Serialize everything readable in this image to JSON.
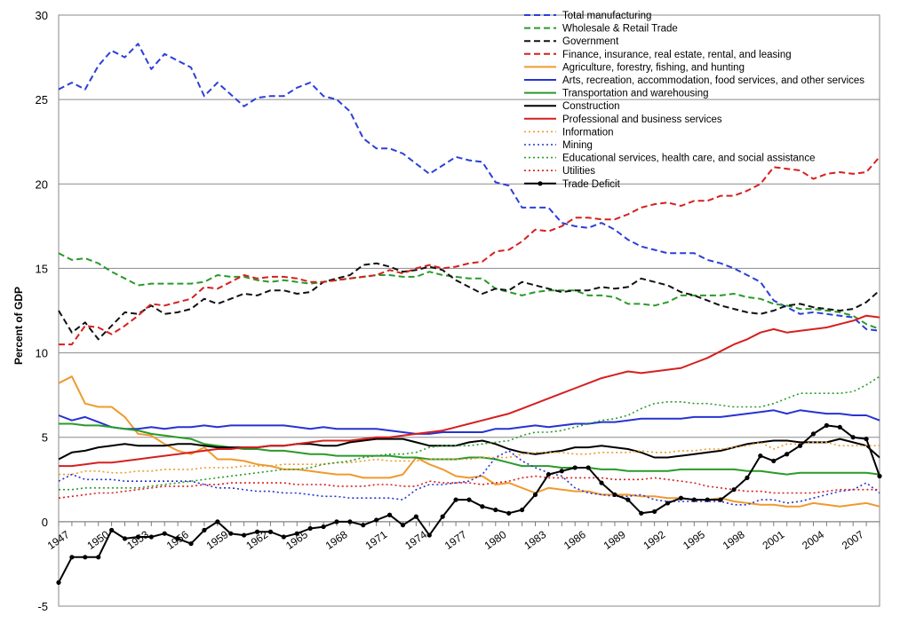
{
  "chart_data": {
    "type": "line",
    "title": "",
    "xlabel": "",
    "ylabel": "Percent of GDP",
    "ylim": [
      -5,
      30
    ],
    "yticks": [
      -5,
      0,
      5,
      10,
      15,
      20,
      25,
      30
    ],
    "xlim": [
      1947,
      2009
    ],
    "xticks": [
      1947,
      1950,
      1953,
      1956,
      1959,
      1962,
      1965,
      1968,
      1971,
      1974,
      1977,
      1980,
      1983,
      1986,
      1989,
      1992,
      1995,
      1998,
      2001,
      2004,
      2007
    ],
    "grid": "horizontal",
    "legend_position": "top-right",
    "x": [
      1947,
      1948,
      1949,
      1950,
      1951,
      1952,
      1953,
      1954,
      1955,
      1956,
      1957,
      1958,
      1959,
      1960,
      1961,
      1962,
      1963,
      1964,
      1965,
      1966,
      1967,
      1968,
      1969,
      1970,
      1971,
      1972,
      1973,
      1974,
      1975,
      1976,
      1977,
      1978,
      1979,
      1980,
      1981,
      1982,
      1983,
      1984,
      1985,
      1986,
      1987,
      1988,
      1989,
      1990,
      1991,
      1992,
      1993,
      1994,
      1995,
      1996,
      1997,
      1998,
      1999,
      2000,
      2001,
      2002,
      2003,
      2004,
      2005,
      2006,
      2007,
      2008,
      2009
    ],
    "series": [
      {
        "name": "Total  manufacturing",
        "color": "#2b3fd9",
        "dash": "dashed",
        "marker": false,
        "values": [
          25.6,
          26.0,
          25.6,
          27.0,
          27.9,
          27.5,
          28.3,
          26.8,
          27.7,
          27.3,
          26.9,
          25.2,
          26.0,
          25.3,
          24.6,
          25.1,
          25.2,
          25.2,
          25.7,
          26.0,
          25.2,
          25.0,
          24.3,
          22.7,
          22.1,
          22.1,
          21.8,
          21.2,
          20.6,
          21.1,
          21.6,
          21.4,
          21.3,
          20.1,
          19.9,
          18.6,
          18.6,
          18.6,
          17.7,
          17.5,
          17.4,
          17.7,
          17.3,
          16.7,
          16.3,
          16.1,
          15.9,
          15.9,
          15.9,
          15.5,
          15.3,
          15.0,
          14.6,
          14.2,
          13.1,
          12.7,
          12.3,
          12.4,
          12.3,
          12.2,
          12.1,
          11.4,
          11.3
        ]
      },
      {
        "name": "Wholesale & Retail Trade",
        "color": "#2a9a2a",
        "dash": "dashed",
        "marker": false,
        "values": [
          15.9,
          15.5,
          15.6,
          15.3,
          14.8,
          14.4,
          14.0,
          14.1,
          14.1,
          14.1,
          14.1,
          14.2,
          14.6,
          14.5,
          14.5,
          14.3,
          14.2,
          14.3,
          14.2,
          14.1,
          14.2,
          14.3,
          14.4,
          14.5,
          14.6,
          14.6,
          14.5,
          14.5,
          14.8,
          14.6,
          14.5,
          14.4,
          14.4,
          13.8,
          13.6,
          13.4,
          13.6,
          13.7,
          13.7,
          13.7,
          13.4,
          13.4,
          13.3,
          12.9,
          12.9,
          12.8,
          13.0,
          13.4,
          13.4,
          13.4,
          13.4,
          13.5,
          13.3,
          13.2,
          12.9,
          12.8,
          12.6,
          12.6,
          12.5,
          12.4,
          12.2,
          11.7,
          11.4
        ]
      },
      {
        "name": "Government",
        "color": "#111111",
        "dash": "dashed",
        "marker": false,
        "values": [
          12.5,
          11.2,
          11.8,
          10.8,
          11.6,
          12.4,
          12.3,
          12.8,
          12.3,
          12.4,
          12.6,
          13.2,
          12.9,
          13.2,
          13.5,
          13.4,
          13.7,
          13.7,
          13.5,
          13.6,
          14.2,
          14.4,
          14.6,
          15.2,
          15.3,
          15.1,
          14.8,
          14.9,
          15.1,
          14.9,
          14.3,
          13.9,
          13.5,
          13.8,
          13.7,
          14.2,
          14.0,
          13.8,
          13.6,
          13.7,
          13.7,
          13.9,
          13.8,
          13.9,
          14.4,
          14.2,
          14.0,
          13.6,
          13.4,
          13.1,
          12.8,
          12.6,
          12.4,
          12.3,
          12.5,
          12.8,
          12.9,
          12.7,
          12.6,
          12.5,
          12.6,
          13.0,
          13.7
        ]
      },
      {
        "name": "Finance,  insurance,  real estate,  rental,  and  leasing",
        "color": "#d61f1f",
        "dash": "dashed",
        "marker": false,
        "values": [
          10.5,
          10.5,
          11.6,
          11.5,
          11.1,
          11.6,
          12.2,
          12.9,
          12.8,
          13.0,
          13.2,
          13.9,
          13.8,
          14.2,
          14.6,
          14.4,
          14.5,
          14.5,
          14.4,
          14.2,
          14.2,
          14.3,
          14.4,
          14.5,
          14.6,
          14.9,
          14.7,
          15.0,
          15.2,
          15.0,
          15.1,
          15.3,
          15.4,
          16.0,
          16.1,
          16.6,
          17.3,
          17.2,
          17.5,
          18.0,
          18.0,
          17.9,
          17.9,
          18.2,
          18.6,
          18.8,
          18.9,
          18.7,
          19.0,
          19.0,
          19.3,
          19.3,
          19.6,
          20.0,
          21.0,
          20.9,
          20.8,
          20.3,
          20.6,
          20.7,
          20.6,
          20.7,
          21.6
        ]
      },
      {
        "name": "Agriculture,  forestry,  fishing,  and  hunting",
        "color": "#ef9a2e",
        "dash": "solid",
        "marker": false,
        "values": [
          8.2,
          8.6,
          7.0,
          6.8,
          6.8,
          6.2,
          5.2,
          5.1,
          4.6,
          4.2,
          4.0,
          4.4,
          3.7,
          3.7,
          3.6,
          3.4,
          3.3,
          3.1,
          3.1,
          3.0,
          2.9,
          2.8,
          2.8,
          2.6,
          2.6,
          2.6,
          2.8,
          3.8,
          3.4,
          3.1,
          2.7,
          2.6,
          2.7,
          2.2,
          2.3,
          2.0,
          1.7,
          2.0,
          1.9,
          1.8,
          1.8,
          1.6,
          1.6,
          1.6,
          1.5,
          1.5,
          1.4,
          1.4,
          1.3,
          1.3,
          1.4,
          1.2,
          1.1,
          1.0,
          1.0,
          0.9,
          0.9,
          1.1,
          1.0,
          0.9,
          1.0,
          1.1,
          0.9
        ]
      },
      {
        "name": "Arts,  recreation,  accommodation,  food services,  and  other  services",
        "color": "#2633d1",
        "dash": "solid",
        "marker": false,
        "values": [
          6.3,
          6.0,
          6.2,
          5.9,
          5.6,
          5.5,
          5.5,
          5.6,
          5.5,
          5.6,
          5.6,
          5.7,
          5.6,
          5.7,
          5.7,
          5.7,
          5.7,
          5.7,
          5.6,
          5.5,
          5.6,
          5.5,
          5.5,
          5.5,
          5.5,
          5.4,
          5.3,
          5.2,
          5.2,
          5.3,
          5.3,
          5.3,
          5.3,
          5.5,
          5.5,
          5.6,
          5.7,
          5.6,
          5.7,
          5.8,
          5.8,
          5.9,
          5.9,
          6.0,
          6.1,
          6.1,
          6.1,
          6.1,
          6.2,
          6.2,
          6.2,
          6.3,
          6.4,
          6.5,
          6.6,
          6.4,
          6.6,
          6.5,
          6.4,
          6.4,
          6.3,
          6.3,
          6.0
        ]
      },
      {
        "name": "Transportation  and  warehousing",
        "color": "#2a9a2a",
        "dash": "solid",
        "marker": false,
        "values": [
          5.8,
          5.8,
          5.7,
          5.7,
          5.6,
          5.5,
          5.4,
          5.2,
          5.1,
          5.0,
          4.9,
          4.6,
          4.5,
          4.4,
          4.3,
          4.3,
          4.2,
          4.2,
          4.1,
          4.0,
          4.0,
          3.9,
          3.9,
          3.9,
          3.9,
          3.9,
          3.8,
          3.8,
          3.7,
          3.7,
          3.7,
          3.8,
          3.8,
          3.7,
          3.5,
          3.3,
          3.3,
          3.3,
          3.2,
          3.2,
          3.2,
          3.1,
          3.1,
          3.0,
          3.0,
          3.0,
          3.0,
          3.1,
          3.1,
          3.1,
          3.1,
          3.1,
          3.0,
          3.0,
          2.9,
          2.8,
          2.9,
          2.9,
          2.9,
          2.9,
          2.9,
          2.9,
          2.8
        ]
      },
      {
        "name": "Construction",
        "color": "#000000",
        "dash": "solid",
        "marker": false,
        "values": [
          3.7,
          4.1,
          4.2,
          4.4,
          4.5,
          4.6,
          4.5,
          4.5,
          4.5,
          4.6,
          4.6,
          4.5,
          4.4,
          4.4,
          4.4,
          4.4,
          4.5,
          4.5,
          4.6,
          4.6,
          4.5,
          4.5,
          4.7,
          4.8,
          4.9,
          4.9,
          4.9,
          4.7,
          4.5,
          4.5,
          4.5,
          4.7,
          4.8,
          4.6,
          4.3,
          4.1,
          4.0,
          4.1,
          4.2,
          4.4,
          4.4,
          4.5,
          4.4,
          4.3,
          4.1,
          3.8,
          3.8,
          3.9,
          4.0,
          4.1,
          4.2,
          4.4,
          4.6,
          4.7,
          4.8,
          4.8,
          4.7,
          4.7,
          4.7,
          4.9,
          4.7,
          4.5,
          3.8
        ]
      },
      {
        "name": "Professional  and  business  services",
        "color": "#d61f1f",
        "dash": "solid",
        "marker": false,
        "values": [
          3.3,
          3.3,
          3.4,
          3.5,
          3.5,
          3.6,
          3.7,
          3.8,
          3.9,
          4.0,
          4.1,
          4.2,
          4.3,
          4.3,
          4.4,
          4.4,
          4.5,
          4.5,
          4.6,
          4.7,
          4.8,
          4.8,
          4.8,
          4.9,
          5.0,
          5.0,
          5.1,
          5.2,
          5.3,
          5.4,
          5.6,
          5.8,
          6.0,
          6.2,
          6.4,
          6.7,
          7.0,
          7.3,
          7.6,
          7.9,
          8.2,
          8.5,
          8.7,
          8.9,
          8.8,
          8.9,
          9.0,
          9.1,
          9.4,
          9.7,
          10.1,
          10.5,
          10.8,
          11.2,
          11.4,
          11.2,
          11.3,
          11.4,
          11.5,
          11.7,
          11.9,
          12.2,
          12.1
        ]
      },
      {
        "name": "Information",
        "color": "#ef9a2e",
        "dash": "dotted",
        "marker": false,
        "values": [
          2.8,
          2.8,
          3.0,
          3.0,
          2.9,
          2.9,
          3.0,
          3.0,
          3.1,
          3.1,
          3.1,
          3.2,
          3.2,
          3.2,
          3.3,
          3.3,
          3.3,
          3.4,
          3.4,
          3.4,
          3.4,
          3.5,
          3.5,
          3.6,
          3.7,
          3.6,
          3.6,
          3.6,
          3.7,
          3.7,
          3.7,
          3.7,
          3.8,
          3.8,
          3.8,
          4.0,
          4.1,
          4.1,
          4.1,
          4.0,
          4.0,
          4.1,
          4.1,
          4.1,
          4.2,
          4.1,
          4.1,
          4.2,
          4.2,
          4.3,
          4.3,
          4.4,
          4.5,
          4.7,
          4.3,
          4.6,
          4.6,
          4.7,
          4.7,
          4.5,
          4.5,
          4.5,
          4.5
        ]
      },
      {
        "name": "Mining",
        "color": "#2633d1",
        "dash": "dotted",
        "marker": false,
        "values": [
          2.4,
          2.8,
          2.5,
          2.5,
          2.5,
          2.4,
          2.4,
          2.4,
          2.4,
          2.4,
          2.4,
          2.2,
          2.0,
          2.0,
          1.9,
          1.8,
          1.8,
          1.7,
          1.7,
          1.6,
          1.5,
          1.5,
          1.4,
          1.4,
          1.4,
          1.4,
          1.3,
          1.9,
          2.2,
          2.2,
          2.3,
          2.4,
          2.8,
          3.8,
          4.2,
          3.6,
          3.2,
          2.9,
          2.7,
          2.0,
          1.7,
          1.6,
          1.5,
          1.5,
          1.6,
          1.3,
          1.2,
          1.2,
          1.2,
          1.2,
          1.2,
          1.0,
          1.0,
          1.3,
          1.3,
          1.1,
          1.2,
          1.4,
          1.6,
          1.8,
          1.9,
          2.3,
          1.7
        ]
      },
      {
        "name": "Educational  services,  health care,  and  social  assistance",
        "color": "#2a9a2a",
        "dash": "dotted",
        "marker": false,
        "values": [
          1.9,
          1.9,
          2.0,
          2.0,
          2.0,
          2.0,
          2.0,
          2.1,
          2.2,
          2.3,
          2.4,
          2.5,
          2.6,
          2.7,
          2.8,
          2.9,
          3.0,
          3.1,
          3.1,
          3.2,
          3.4,
          3.5,
          3.6,
          3.8,
          3.9,
          4.0,
          4.0,
          4.1,
          4.4,
          4.5,
          4.5,
          4.5,
          4.6,
          4.7,
          4.8,
          5.1,
          5.3,
          5.3,
          5.4,
          5.6,
          5.8,
          6.0,
          6.1,
          6.3,
          6.7,
          7.0,
          7.1,
          7.1,
          7.0,
          7.0,
          6.9,
          6.8,
          6.8,
          6.8,
          7.0,
          7.3,
          7.6,
          7.6,
          7.6,
          7.6,
          7.7,
          8.1,
          8.6
        ]
      },
      {
        "name": "Utilities",
        "color": "#d61f1f",
        "dash": "dotted",
        "marker": false,
        "values": [
          1.4,
          1.5,
          1.6,
          1.7,
          1.7,
          1.8,
          1.9,
          2.0,
          2.1,
          2.1,
          2.1,
          2.2,
          2.2,
          2.3,
          2.3,
          2.3,
          2.3,
          2.3,
          2.2,
          2.2,
          2.2,
          2.1,
          2.1,
          2.1,
          2.2,
          2.2,
          2.1,
          2.1,
          2.4,
          2.3,
          2.3,
          2.3,
          2.2,
          2.3,
          2.4,
          2.6,
          2.7,
          2.6,
          2.6,
          2.6,
          2.6,
          2.6,
          2.5,
          2.5,
          2.5,
          2.6,
          2.5,
          2.4,
          2.3,
          2.1,
          2.0,
          1.9,
          1.8,
          1.8,
          1.7,
          1.7,
          1.7,
          1.7,
          1.8,
          1.9,
          1.9,
          1.9,
          1.9
        ]
      },
      {
        "name": "Trade Deficit",
        "color": "#000000",
        "dash": "solid",
        "marker": true,
        "values": [
          -3.6,
          -2.1,
          -2.1,
          -2.1,
          -0.5,
          -1.0,
          -0.9,
          -0.9,
          -0.7,
          -1.0,
          -1.3,
          -0.5,
          0.0,
          -0.7,
          -0.8,
          -0.6,
          -0.6,
          -0.9,
          -0.7,
          -0.4,
          -0.3,
          0.0,
          0.0,
          -0.2,
          0.1,
          0.4,
          -0.2,
          0.3,
          -0.8,
          0.3,
          1.3,
          1.3,
          0.9,
          0.7,
          0.5,
          0.7,
          1.6,
          2.8,
          3.0,
          3.2,
          3.2,
          2.3,
          1.6,
          1.3,
          0.5,
          0.6,
          1.1,
          1.4,
          1.3,
          1.3,
          1.3,
          1.9,
          2.6,
          3.9,
          3.6,
          4.0,
          4.5,
          5.2,
          5.7,
          5.6,
          5.0,
          4.9,
          2.7
        ]
      }
    ]
  }
}
